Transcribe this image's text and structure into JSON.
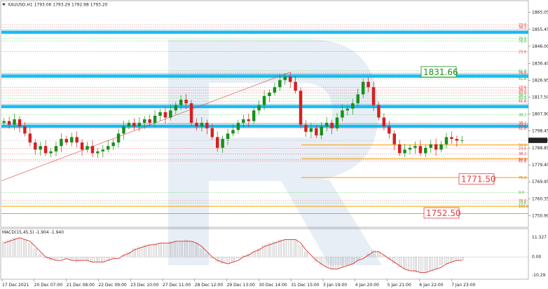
{
  "window": {
    "symbol_header": "XAUUSD,H1  1793.06 1793.29 1792.98 1793.20",
    "menu_icon": "triangle-down-icon"
  },
  "colors": {
    "bull": "#1a8f1a",
    "bear": "#d42020",
    "support_blue": "#00aaee",
    "orange_level": "#f5a000",
    "green_level": "#2bbf2b",
    "red_level": "#e04040",
    "watermark": "#e7edf5",
    "macd_signal": "#e03030",
    "macd_hist": "#999999",
    "trendline": "#e04040"
  },
  "chart_data": [
    {
      "type": "candlestick",
      "title": "XAUUSD,H1  1793.06 1793.29 1792.98 1793.20",
      "ylim": [
        1746.0,
        1868.0
      ],
      "y_ticks": [
        "1865.05",
        "1855.45",
        "1846.00",
        "1836.40",
        "1826.95",
        "1817.50",
        "1807.90",
        "1798.45",
        "1788.85",
        "1779.40",
        "1769.95",
        "1760.35",
        "1750.90"
      ],
      "x_ticks": [
        "17 Dec 2021",
        "20 Dec 07:00",
        "21 Dec 08:00",
        "22 Dec 09:00",
        "23 Dec 10:00",
        "27 Dec 11:00",
        "28 Dec 12:00",
        "29 Dec 13:00",
        "30 Dec 14:00",
        "31 Dec 15:00",
        "3 Jan 19:00",
        "4 Jan 20:00",
        "5 Jan 21:00",
        "6 Jan 22:00",
        "7 Jan 23:00"
      ],
      "last_price": "1793.20",
      "close_series": [
        1804,
        1802,
        1805,
        1801,
        1797,
        1792,
        1788,
        1790,
        1786,
        1787,
        1790,
        1794,
        1792,
        1795,
        1792,
        1788,
        1790,
        1786,
        1787,
        1788,
        1790,
        1792,
        1797,
        1801,
        1803,
        1801,
        1803,
        1805,
        1803,
        1807,
        1809,
        1806,
        1810,
        1813,
        1816,
        1814,
        1803,
        1801,
        1803,
        1800,
        1795,
        1789,
        1794,
        1797,
        1799,
        1803,
        1805,
        1804,
        1810,
        1813,
        1818,
        1820,
        1823,
        1827,
        1829,
        1826,
        1821,
        1802,
        1798,
        1800,
        1796,
        1801,
        1803,
        1800,
        1806,
        1810,
        1811,
        1814,
        1819,
        1826,
        1823,
        1813,
        1806,
        1801,
        1797,
        1791,
        1786,
        1788,
        1789,
        1790,
        1786,
        1789,
        1791,
        1788,
        1791,
        1795,
        1794,
        1793,
        1793.2
      ],
      "levels": [
        {
          "value": 1853.8,
          "label": "",
          "kind": "support_blue"
        },
        {
          "value": 1829.2,
          "label": "",
          "kind": "support_blue"
        },
        {
          "value": 1812.1,
          "label": "",
          "kind": "support_blue"
        },
        {
          "value": 1801.1,
          "label": "",
          "kind": "support_blue"
        },
        {
          "value": 1790.6,
          "label": "50.0",
          "kind": "orange_level"
        },
        {
          "value": 1772.3,
          "label": "76.0",
          "kind": "orange_level"
        },
        {
          "value": 1756.2,
          "label": "100.0",
          "kind": "orange_level"
        },
        {
          "value": 1752.1,
          "label": "",
          "kind": "orange_level"
        },
        {
          "value": 1783.0,
          "label": "",
          "kind": "orange_level"
        }
      ],
      "fib_labels": [
        {
          "value": 1858.1,
          "label": "23.6",
          "color": "red_level"
        },
        {
          "value": 1856.6,
          "label": "38.2",
          "color": "red_level"
        },
        {
          "value": 1850.5,
          "label": "76.0",
          "color": "green_level"
        },
        {
          "value": 1848.9,
          "label": "76.0",
          "color": "green_level"
        },
        {
          "value": 1843.0,
          "label": "23.6",
          "color": "red_level"
        },
        {
          "value": 1832.2,
          "label": "61.8",
          "color": "green_level"
        },
        {
          "value": 1831.0,
          "label": "76.0",
          "color": "red_level"
        },
        {
          "value": 1827.7,
          "label": "61.8",
          "color": "green_level"
        },
        {
          "value": 1823.0,
          "label": "23.6",
          "color": "red_level"
        },
        {
          "value": 1821.4,
          "label": "38.2",
          "color": "red_level"
        },
        {
          "value": 1819.9,
          "label": "50.0",
          "color": "red_level"
        },
        {
          "value": 1818.3,
          "label": "38.2",
          "color": "green_level"
        },
        {
          "value": 1816.8,
          "label": "50.0",
          "color": "green_level"
        },
        {
          "value": 1815.2,
          "label": "61.8",
          "color": "red_level"
        },
        {
          "value": 1807.6,
          "label": "38.2",
          "color": "green_level"
        },
        {
          "value": 1803.0,
          "label": "38.2",
          "color": "red_level"
        },
        {
          "value": 1801.5,
          "label": "50.0",
          "color": "red_level"
        },
        {
          "value": 1799.9,
          "label": "61.8",
          "color": "red_level"
        },
        {
          "value": 1788.6,
          "label": "23.6",
          "color": "red_level"
        },
        {
          "value": 1785.6,
          "label": "38.2",
          "color": "red_level"
        },
        {
          "value": 1782.5,
          "label": "50.0",
          "color": "red_level"
        },
        {
          "value": 1781.5,
          "label": "61.8",
          "color": "red_level"
        },
        {
          "value": 1764.0,
          "label": "0.0",
          "color": "green_level"
        },
        {
          "value": 1759.4,
          "label": "76.0",
          "color": "red_level"
        },
        {
          "value": 1758.0,
          "label": "23.6",
          "color": "green_level"
        }
      ],
      "annotations": [
        {
          "text": "1831.66",
          "value": 1831.66,
          "color": "#1a8f1a"
        },
        {
          "text": "1771.50",
          "value": 1771.5,
          "color": "#e04040"
        },
        {
          "text": "1752.50",
          "value": 1752.5,
          "color": "#e04040"
        }
      ]
    },
    {
      "type": "macd",
      "title": "MACD(15,45,5) -1.904 -1.940",
      "ylim": [
        -12.0,
        13.0
      ],
      "y_ticks": [
        "11.327",
        "0.00",
        "-10.29"
      ],
      "histogram": [
        9,
        10,
        11,
        11,
        10,
        8,
        5,
        2,
        -1,
        -2,
        -2,
        -1,
        -1,
        -2,
        -3,
        -2,
        -2,
        -3,
        -3,
        -3,
        -2,
        -1,
        0,
        1,
        3,
        5,
        6,
        7,
        7,
        8,
        8,
        8,
        9,
        9,
        9,
        10,
        9,
        8,
        5,
        2,
        -1,
        -3,
        -4,
        -4,
        -3,
        -1,
        1,
        2,
        3,
        5,
        7,
        8,
        9,
        10,
        10,
        10,
        10,
        7,
        3,
        0,
        -3,
        -5,
        -6,
        -7,
        -7,
        -6,
        -5,
        -4,
        -2,
        0,
        2,
        4,
        3,
        1,
        -2,
        -4,
        -6,
        -7,
        -8,
        -9,
        -9,
        -9,
        -8,
        -7,
        -5,
        -4,
        -3,
        -2,
        -2
      ],
      "signal": [
        8,
        9,
        10,
        11,
        10,
        9,
        6,
        3,
        0,
        -1,
        -2,
        -2,
        -1,
        -2,
        -2,
        -2,
        -2,
        -3,
        -3,
        -3,
        -2,
        -1,
        -1,
        1,
        2,
        4,
        5,
        6,
        7,
        7,
        8,
        8,
        8,
        9,
        9,
        9,
        9,
        8,
        6,
        3,
        0,
        -2,
        -3,
        -4,
        -3,
        -2,
        0,
        1,
        3,
        4,
        6,
        7,
        8,
        9,
        10,
        10,
        10,
        8,
        4,
        1,
        -2,
        -4,
        -6,
        -7,
        -7,
        -6,
        -5,
        -4,
        -2,
        -1,
        1,
        3,
        3,
        1,
        -1,
        -3,
        -5,
        -7,
        -8,
        -8,
        -9,
        -9,
        -8,
        -7,
        -6,
        -4,
        -3,
        -2,
        -2
      ]
    }
  ]
}
